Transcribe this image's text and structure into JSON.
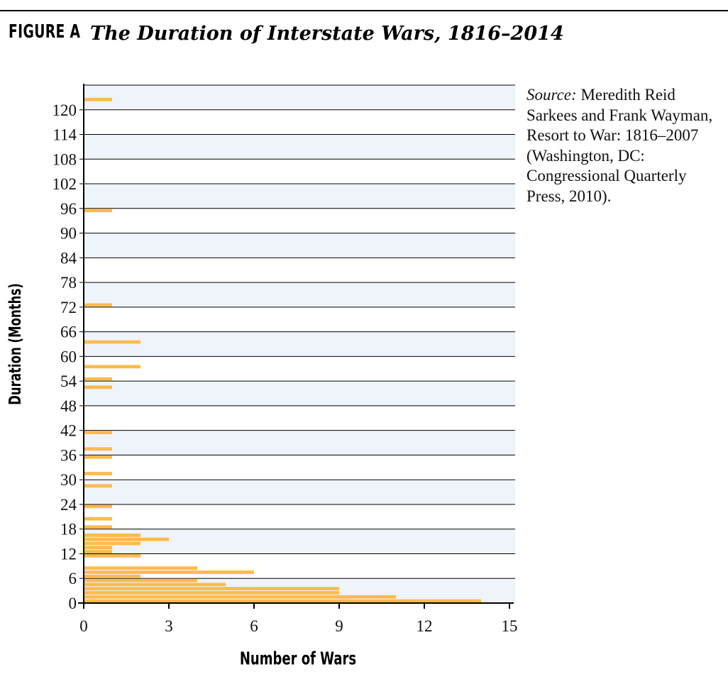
{
  "figure": {
    "label": "FIGURE A",
    "title": "The Duration of Interstate Wars, 1816–2014"
  },
  "source": {
    "prefix": "Source:",
    "text": " Meredith Reid Sarkees and Frank Wayman, Resort to War: 1816–2007 (Washington, DC: Congressional Quarterly Press, 2010)."
  },
  "colors": {
    "bar": "#FDBB4E",
    "band": "#EEF4F9",
    "grid": "#000000"
  },
  "chart_data": {
    "type": "bar",
    "orientation": "horizontal",
    "title": "The Duration of Interstate Wars, 1816–2014",
    "xlabel": "Number of Wars",
    "ylabel": "Duration (Months)",
    "xlim": [
      0,
      15
    ],
    "ylim": [
      0,
      126
    ],
    "xticks": [
      0,
      3,
      6,
      9,
      12,
      15
    ],
    "yticks": [
      0,
      6,
      12,
      18,
      24,
      30,
      36,
      42,
      48,
      54,
      60,
      66,
      72,
      78,
      84,
      90,
      96,
      102,
      108,
      114,
      120
    ],
    "alternating_bands": true,
    "grid": true,
    "durations_months": [
      0,
      1,
      2,
      3,
      4,
      5,
      6,
      7,
      8,
      11,
      12,
      13,
      14,
      15,
      16,
      18,
      20,
      23,
      28,
      31,
      35,
      37,
      41,
      52,
      54,
      57,
      63,
      72,
      95,
      122
    ],
    "values": [
      14,
      11,
      9,
      9,
      5,
      4,
      2,
      6,
      4,
      2,
      1,
      1,
      2,
      3,
      2,
      1,
      1,
      1,
      1,
      1,
      1,
      1,
      1,
      1,
      1,
      2,
      2,
      1,
      1,
      1
    ]
  }
}
